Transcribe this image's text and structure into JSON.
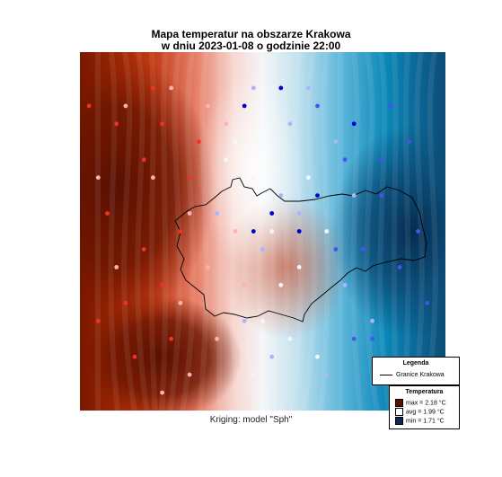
{
  "title": {
    "line1": "Mapa temperatur na obszarze Krakowa",
    "line2": "w dniu 2023-01-08 o godzinie 22:00"
  },
  "caption": "Kriging: model \"Sph\"",
  "legend": {
    "title": "Legenda",
    "boundary_label": "Granice Krakowa"
  },
  "temperature_legend": {
    "title": "Temperatura",
    "items": [
      {
        "label": "max =",
        "value": "2.18 °C",
        "color": "#5a1000"
      },
      {
        "label": "avg =",
        "value": "1.99 °C",
        "color": "#ffffff"
      },
      {
        "label": "min =",
        "value": "1.71 °C",
        "color": "#0a2a55"
      }
    ]
  },
  "palette": {
    "warm_dark": "#5a1000",
    "warm": "#c23a14",
    "light": "#f4f6f8",
    "cool": "#0086b8",
    "cool_dark": "#083358"
  },
  "stations": {
    "series": [
      {
        "name": "warm-stations",
        "color": "#ee3322",
        "values": [
          [
            19.79,
            50.12
          ],
          [
            19.82,
            50.11
          ],
          [
            19.85,
            50.09
          ],
          [
            19.86,
            50.13
          ],
          [
            19.81,
            50.06
          ],
          [
            19.85,
            50.04
          ],
          [
            19.83,
            50.01
          ],
          [
            19.87,
            50.02
          ],
          [
            19.88,
            49.99
          ],
          [
            19.8,
            50.0
          ],
          [
            19.9,
            50.08
          ],
          [
            19.89,
            50.05
          ],
          [
            19.84,
            49.98
          ],
          [
            19.91,
            50.1
          ],
          [
            19.87,
            50.11
          ]
        ]
      },
      {
        "name": "pale-warm-stations",
        "color": "#ffb0b0",
        "values": [
          [
            19.83,
            50.12
          ],
          [
            19.88,
            50.13
          ],
          [
            19.92,
            50.12
          ],
          [
            19.9,
            50.06
          ],
          [
            19.92,
            50.03
          ],
          [
            19.86,
            50.08
          ],
          [
            19.89,
            50.01
          ],
          [
            19.95,
            50.05
          ],
          [
            19.93,
            49.99
          ],
          [
            19.8,
            50.08
          ],
          [
            19.94,
            50.11
          ],
          [
            19.9,
            49.97
          ],
          [
            19.96,
            50.02
          ],
          [
            19.82,
            50.03
          ],
          [
            19.87,
            49.96
          ]
        ]
      },
      {
        "name": "neutral-stations",
        "color": "#f4f6ff",
        "values": [
          [
            19.95,
            50.1
          ],
          [
            19.97,
            50.08
          ],
          [
            19.99,
            50.05
          ],
          [
            20.0,
            50.02
          ],
          [
            19.98,
            50.0
          ],
          [
            19.96,
            50.07
          ],
          [
            20.02,
            50.03
          ],
          [
            19.94,
            50.09
          ],
          [
            20.01,
            49.99
          ],
          [
            19.97,
            49.97
          ],
          [
            20.05,
            50.05
          ],
          [
            20.03,
            50.08
          ],
          [
            20.04,
            49.98
          ]
        ]
      },
      {
        "name": "pale-cool-stations",
        "color": "#aab4ff",
        "values": [
          [
            19.97,
            50.13
          ],
          [
            20.01,
            50.11
          ],
          [
            20.03,
            50.13
          ],
          [
            20.06,
            50.1
          ],
          [
            20.0,
            50.07
          ],
          [
            19.93,
            50.06
          ],
          [
            20.07,
            50.02
          ],
          [
            20.05,
            49.97
          ],
          [
            19.99,
            49.98
          ],
          [
            19.98,
            50.04
          ],
          [
            20.08,
            50.07
          ],
          [
            20.02,
            50.06
          ],
          [
            20.1,
            50.0
          ],
          [
            19.96,
            50.0
          ]
        ]
      },
      {
        "name": "cool-stations",
        "color": "#4455ee",
        "values": [
          [
            20.04,
            50.12
          ],
          [
            20.07,
            50.09
          ],
          [
            20.09,
            50.04
          ],
          [
            20.11,
            50.07
          ],
          [
            20.13,
            50.03
          ],
          [
            20.1,
            49.99
          ],
          [
            20.14,
            50.1
          ],
          [
            20.12,
            50.12
          ],
          [
            20.15,
            50.05
          ],
          [
            20.13,
            49.97
          ],
          [
            20.16,
            50.01
          ],
          [
            20.08,
            49.99
          ],
          [
            20.06,
            50.04
          ],
          [
            20.11,
            50.09
          ]
        ]
      },
      {
        "name": "cold-stations",
        "color": "#0000cc",
        "values": [
          [
            19.99,
            50.06
          ],
          [
            20.02,
            50.05
          ],
          [
            20.04,
            50.07
          ],
          [
            19.97,
            50.05
          ],
          [
            20.08,
            50.11
          ],
          [
            20.0,
            50.13
          ],
          [
            19.96,
            50.12
          ]
        ]
      }
    ]
  }
}
